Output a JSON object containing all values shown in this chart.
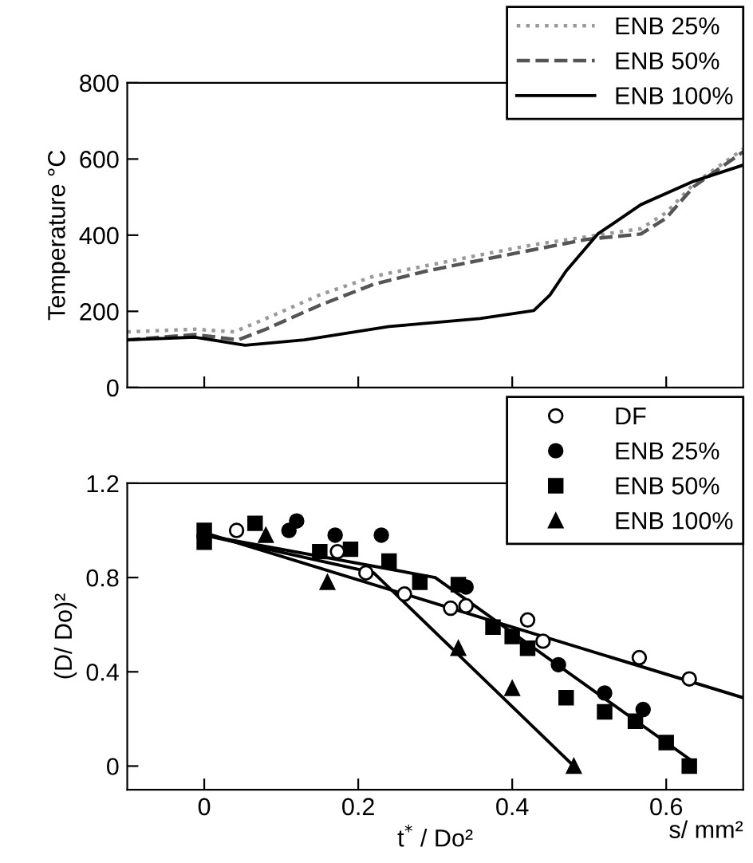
{
  "chart_data": [
    {
      "type": "line",
      "ylabel": "Temperature °C",
      "xlim": [
        -0.1,
        0.7
      ],
      "xticks": [
        {
          "value": 0,
          "label": null
        },
        {
          "value": 0.2,
          "label": null
        },
        {
          "value": 0.4,
          "label": null
        },
        {
          "value": 0.6,
          "label": null
        }
      ],
      "ylim": [
        0,
        800
      ],
      "yticks": [
        0,
        200,
        400,
        600,
        800
      ],
      "tick_labels": "y",
      "legend": "top right",
      "grid": false,
      "series": [
        {
          "name": "ENB 25%",
          "color": "#999999",
          "line_style": "dotted",
          "x": [
            -0.1,
            -0.012,
            0.039,
            0.08,
            0.15,
            0.22,
            0.289,
            0.358,
            0.428,
            0.497,
            0.567,
            0.6,
            0.636,
            0.7
          ],
          "values": [
            146,
            153,
            146,
            181,
            243,
            292,
            320,
            348,
            375,
            396,
            417,
            459,
            535,
            626
          ]
        },
        {
          "name": "ENB 50%",
          "color": "#555555",
          "line_style": "dashed",
          "x": [
            -0.1,
            -0.012,
            0.044,
            0.08,
            0.15,
            0.22,
            0.289,
            0.358,
            0.428,
            0.497,
            0.567,
            0.6,
            0.636,
            0.7
          ],
          "values": [
            125,
            139,
            125,
            153,
            216,
            271,
            306,
            334,
            362,
            389,
            403,
            445,
            528,
            619
          ]
        },
        {
          "name": "ENB 100%",
          "color": "#000000",
          "line_style": "solid",
          "x": [
            -0.1,
            -0.012,
            0.053,
            0.13,
            0.24,
            0.358,
            0.428,
            0.449,
            0.47,
            0.511,
            0.567,
            0.636,
            0.7
          ],
          "values": [
            125,
            132,
            111,
            125,
            160,
            181,
            202,
            243,
            306,
            403,
            480,
            542,
            584
          ]
        }
      ]
    },
    {
      "type": "scatter",
      "ylabel": "(D/ Do)²",
      "xlabel": "t$^{*}$ / Do²",
      "annotations": [
        "s/ mm²"
      ],
      "xlim": [
        -0.1,
        0.7
      ],
      "xticks": [
        0,
        0.2,
        0.4,
        0.6
      ],
      "ylim": [
        -0.1,
        1.2
      ],
      "yticks": [
        0,
        0.4,
        0.8,
        1.2
      ],
      "legend": "top right",
      "grid": false,
      "series": [
        {
          "name": "DF",
          "color": "#ffffff",
          "marker": "circle",
          "x": [
            0.042,
            0.173,
            0.21,
            0.26,
            0.32,
            0.34,
            0.42,
            0.44,
            0.565,
            0.63
          ],
          "values": [
            1.0,
            0.91,
            0.82,
            0.73,
            0.67,
            0.68,
            0.62,
            0.53,
            0.46,
            0.37
          ]
        },
        {
          "name": "ENB 25%",
          "color": "#000000",
          "marker": "circle",
          "x": [
            0.11,
            0.12,
            0.17,
            0.23,
            0.28,
            0.34,
            0.46,
            0.52,
            0.57
          ],
          "values": [
            1.0,
            1.04,
            0.98,
            0.98,
            null,
            0.76,
            0.43,
            0.31,
            0.24
          ]
        },
        {
          "name": "ENB 50%",
          "color": "#000000",
          "marker": "square",
          "x": [
            0,
            0,
            0.066,
            0.15,
            0.19,
            0.24,
            0.28,
            0.33,
            0.375,
            0.4,
            0.42,
            0.47,
            0.52,
            0.56,
            0.6,
            0.63
          ],
          "values": [
            1.0,
            0.95,
            1.03,
            0.91,
            0.92,
            0.87,
            0.78,
            0.77,
            0.59,
            0.55,
            0.5,
            0.29,
            0.23,
            0.19,
            0.1,
            0.0
          ]
        },
        {
          "name": "ENB 100%",
          "color": "#000000",
          "marker": "triangle",
          "x": [
            0.08,
            0.16,
            0.33,
            0.4,
            0.48
          ],
          "values": [
            0.98,
            0.78,
            0.5,
            0.33,
            0.0
          ]
        },
        {
          "type": "line",
          "color": "#000000",
          "marker": "none",
          "x": [
            0,
            0.7
          ],
          "values": [
            0.99,
            0.29
          ]
        },
        {
          "type": "line",
          "color": "#000000",
          "marker": "none",
          "x": [
            0,
            0.3,
            0.63
          ],
          "values": [
            0.98,
            0.8,
            0.03
          ]
        },
        {
          "type": "line",
          "color": "#000000",
          "marker": "none",
          "x": [
            0,
            0.22,
            0.48
          ],
          "values": [
            0.98,
            0.82,
            0.0
          ]
        }
      ]
    }
  ]
}
